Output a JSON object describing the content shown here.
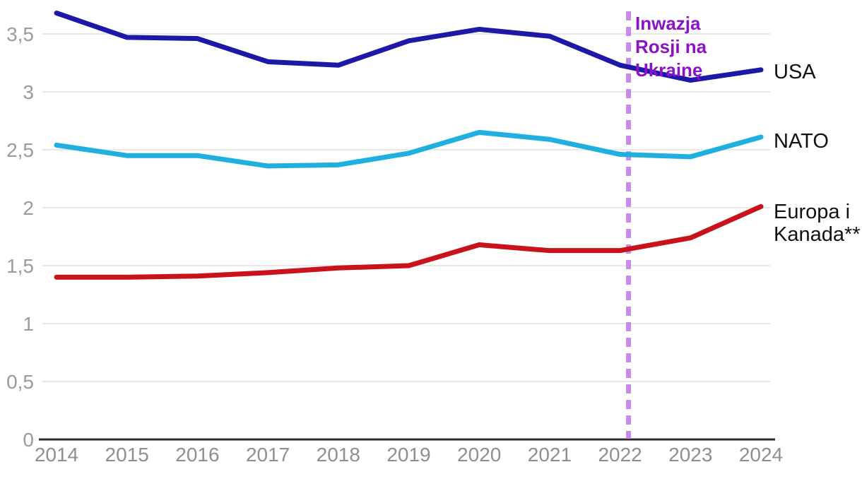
{
  "chart_data": {
    "type": "line",
    "categories": [
      "2014",
      "2015",
      "2016",
      "2017",
      "2018",
      "2019",
      "2020",
      "2021",
      "2022",
      "2023",
      "2024"
    ],
    "series": [
      {
        "name": "USA",
        "end_label": "USA",
        "color": "#1e18a8",
        "values": [
          3.68,
          3.47,
          3.46,
          3.26,
          3.23,
          3.44,
          3.54,
          3.48,
          3.23,
          3.1,
          3.19
        ]
      },
      {
        "name": "NATO",
        "end_label": "NATO",
        "color": "#1fb0e0",
        "values": [
          2.54,
          2.45,
          2.45,
          2.36,
          2.37,
          2.47,
          2.65,
          2.59,
          2.46,
          2.44,
          2.61
        ]
      },
      {
        "name": "Europa i Kanada**",
        "end_label": "Europa i\nKanada**",
        "color": "#c9121c",
        "values": [
          1.4,
          1.4,
          1.41,
          1.44,
          1.48,
          1.5,
          1.68,
          1.63,
          1.63,
          1.74,
          2.01
        ]
      }
    ],
    "title": "",
    "xlabel": "",
    "ylabel": "",
    "ylim": [
      0,
      3.5
    ],
    "yticks": {
      "values": [
        0,
        0.5,
        1,
        1.5,
        2,
        2.5,
        3,
        3.5
      ],
      "labels": [
        "0",
        "0,5",
        "1",
        "1,5",
        "2",
        "2,5",
        "3",
        "3,5"
      ]
    },
    "grid": "horizontal",
    "legend_position": "right-end-of-lines",
    "annotation": {
      "text": "Inwazja\nRosji na\nUkrainę",
      "x_position": 8.12,
      "text_color": "#8b12ca",
      "line_color": "#c98be9",
      "line_style": "dashed-vertical"
    },
    "colors": {
      "gridline": "#e8e8e8",
      "axis": "#2d2d2d",
      "tick_text": "#9b9b9b"
    }
  }
}
